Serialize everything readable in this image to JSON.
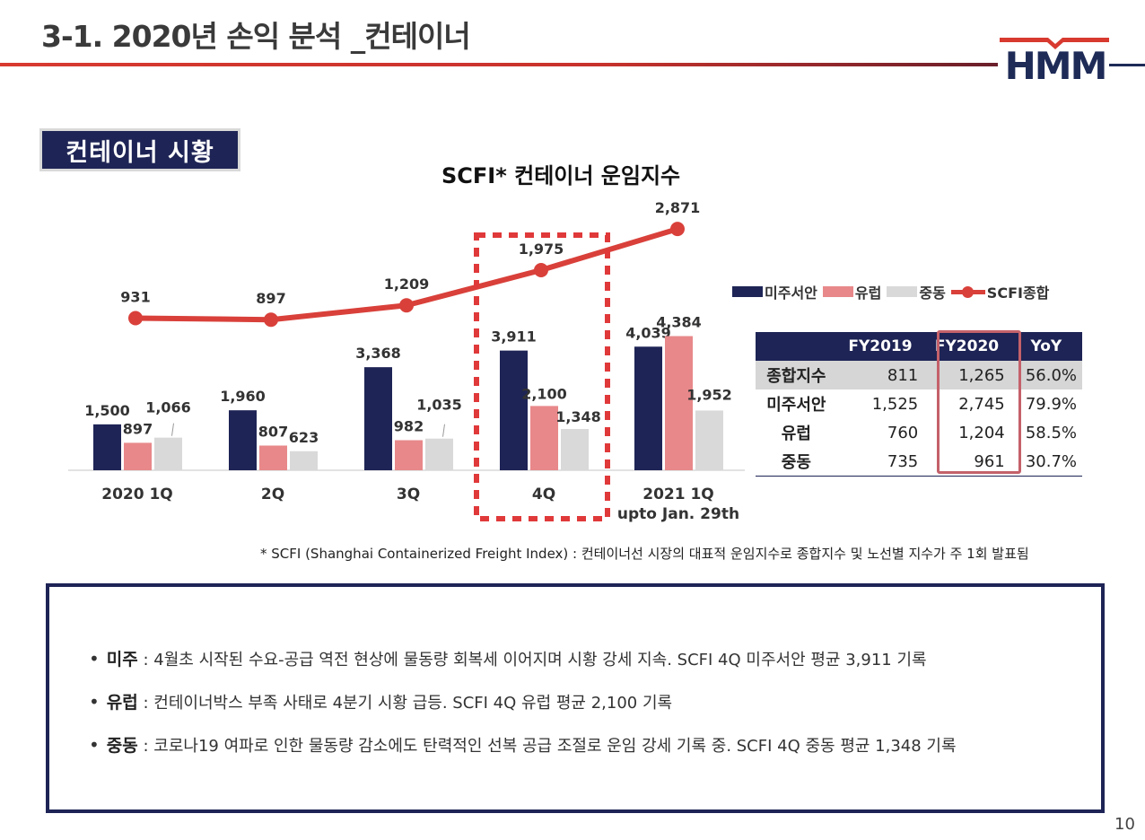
{
  "page": {
    "title": "3-1. 2020년 손익 분석 _컨테이너",
    "logo_text": "HMM",
    "section_tag": "컨테이너 시황",
    "page_number": "10"
  },
  "colors": {
    "navy": "#1e2455",
    "pink": "#e8888a",
    "gray": "#d9d9d9",
    "red": "#d9403a"
  },
  "chart_data": {
    "type": "bar",
    "title": "SCFI* 컨테이너 운임지수",
    "categories": [
      "2020 1Q",
      "2Q",
      "3Q",
      "4Q",
      "2021 1Q"
    ],
    "category_sublabels": [
      "",
      "",
      "",
      "",
      "upto Jan. 29th"
    ],
    "series": [
      {
        "name": "미주서안",
        "kind": "bar",
        "color": "#1e2455",
        "values": [
          1500,
          1960,
          3368,
          3911,
          4039
        ]
      },
      {
        "name": "유럽",
        "kind": "bar",
        "color": "#e8888a",
        "values": [
          897,
          807,
          982,
          2100,
          4384
        ]
      },
      {
        "name": "중동",
        "kind": "bar",
        "color": "#d9d9d9",
        "values": [
          1066,
          623,
          1035,
          1348,
          1952
        ]
      },
      {
        "name": "SCFI종합",
        "kind": "line",
        "color": "#d9403a",
        "values": [
          931,
          897,
          1209,
          1975,
          2871
        ]
      }
    ],
    "highlighted_category": "4Q",
    "legend_position": "right"
  },
  "summary_table": {
    "headers": [
      "",
      "FY2019",
      "FY2020",
      "YoY"
    ],
    "rows": [
      [
        "종합지수",
        "811",
        "1,265",
        "56.0%"
      ],
      [
        "미주서안",
        "1,525",
        "2,745",
        "79.9%"
      ],
      [
        "유럽",
        "760",
        "1,204",
        "58.5%"
      ],
      [
        "중동",
        "735",
        "961",
        "30.7%"
      ]
    ]
  },
  "footnote": "* SCFI (Shanghai Containerized Freight Index) : 컨테이너선 시장의 대표적 운임지수로 종합지수 및 노선별 지수가 주 1회 발표됨",
  "notes": [
    {
      "bullet": "•",
      "label": "미주",
      "text": " : 4월초 시작된 수요-공급 역전 현상에 물동량 회복세 이어지며 시황 강세 지속. SCFI 4Q 미주서안 평균 3,911 기록"
    },
    {
      "bullet": "•",
      "label": "유럽",
      "text": " : 컨테이너박스 부족 사태로 4분기 시황 급등. SCFI 4Q 유럽 평균 2,100 기록"
    },
    {
      "bullet": "•",
      "label": "중동",
      "text": " : 코로나19 여파로 인한 물동량 감소에도 탄력적인 선복 공급 조절로 운임 강세 기록 중. SCFI 4Q 중동 평균 1,348 기록"
    }
  ]
}
